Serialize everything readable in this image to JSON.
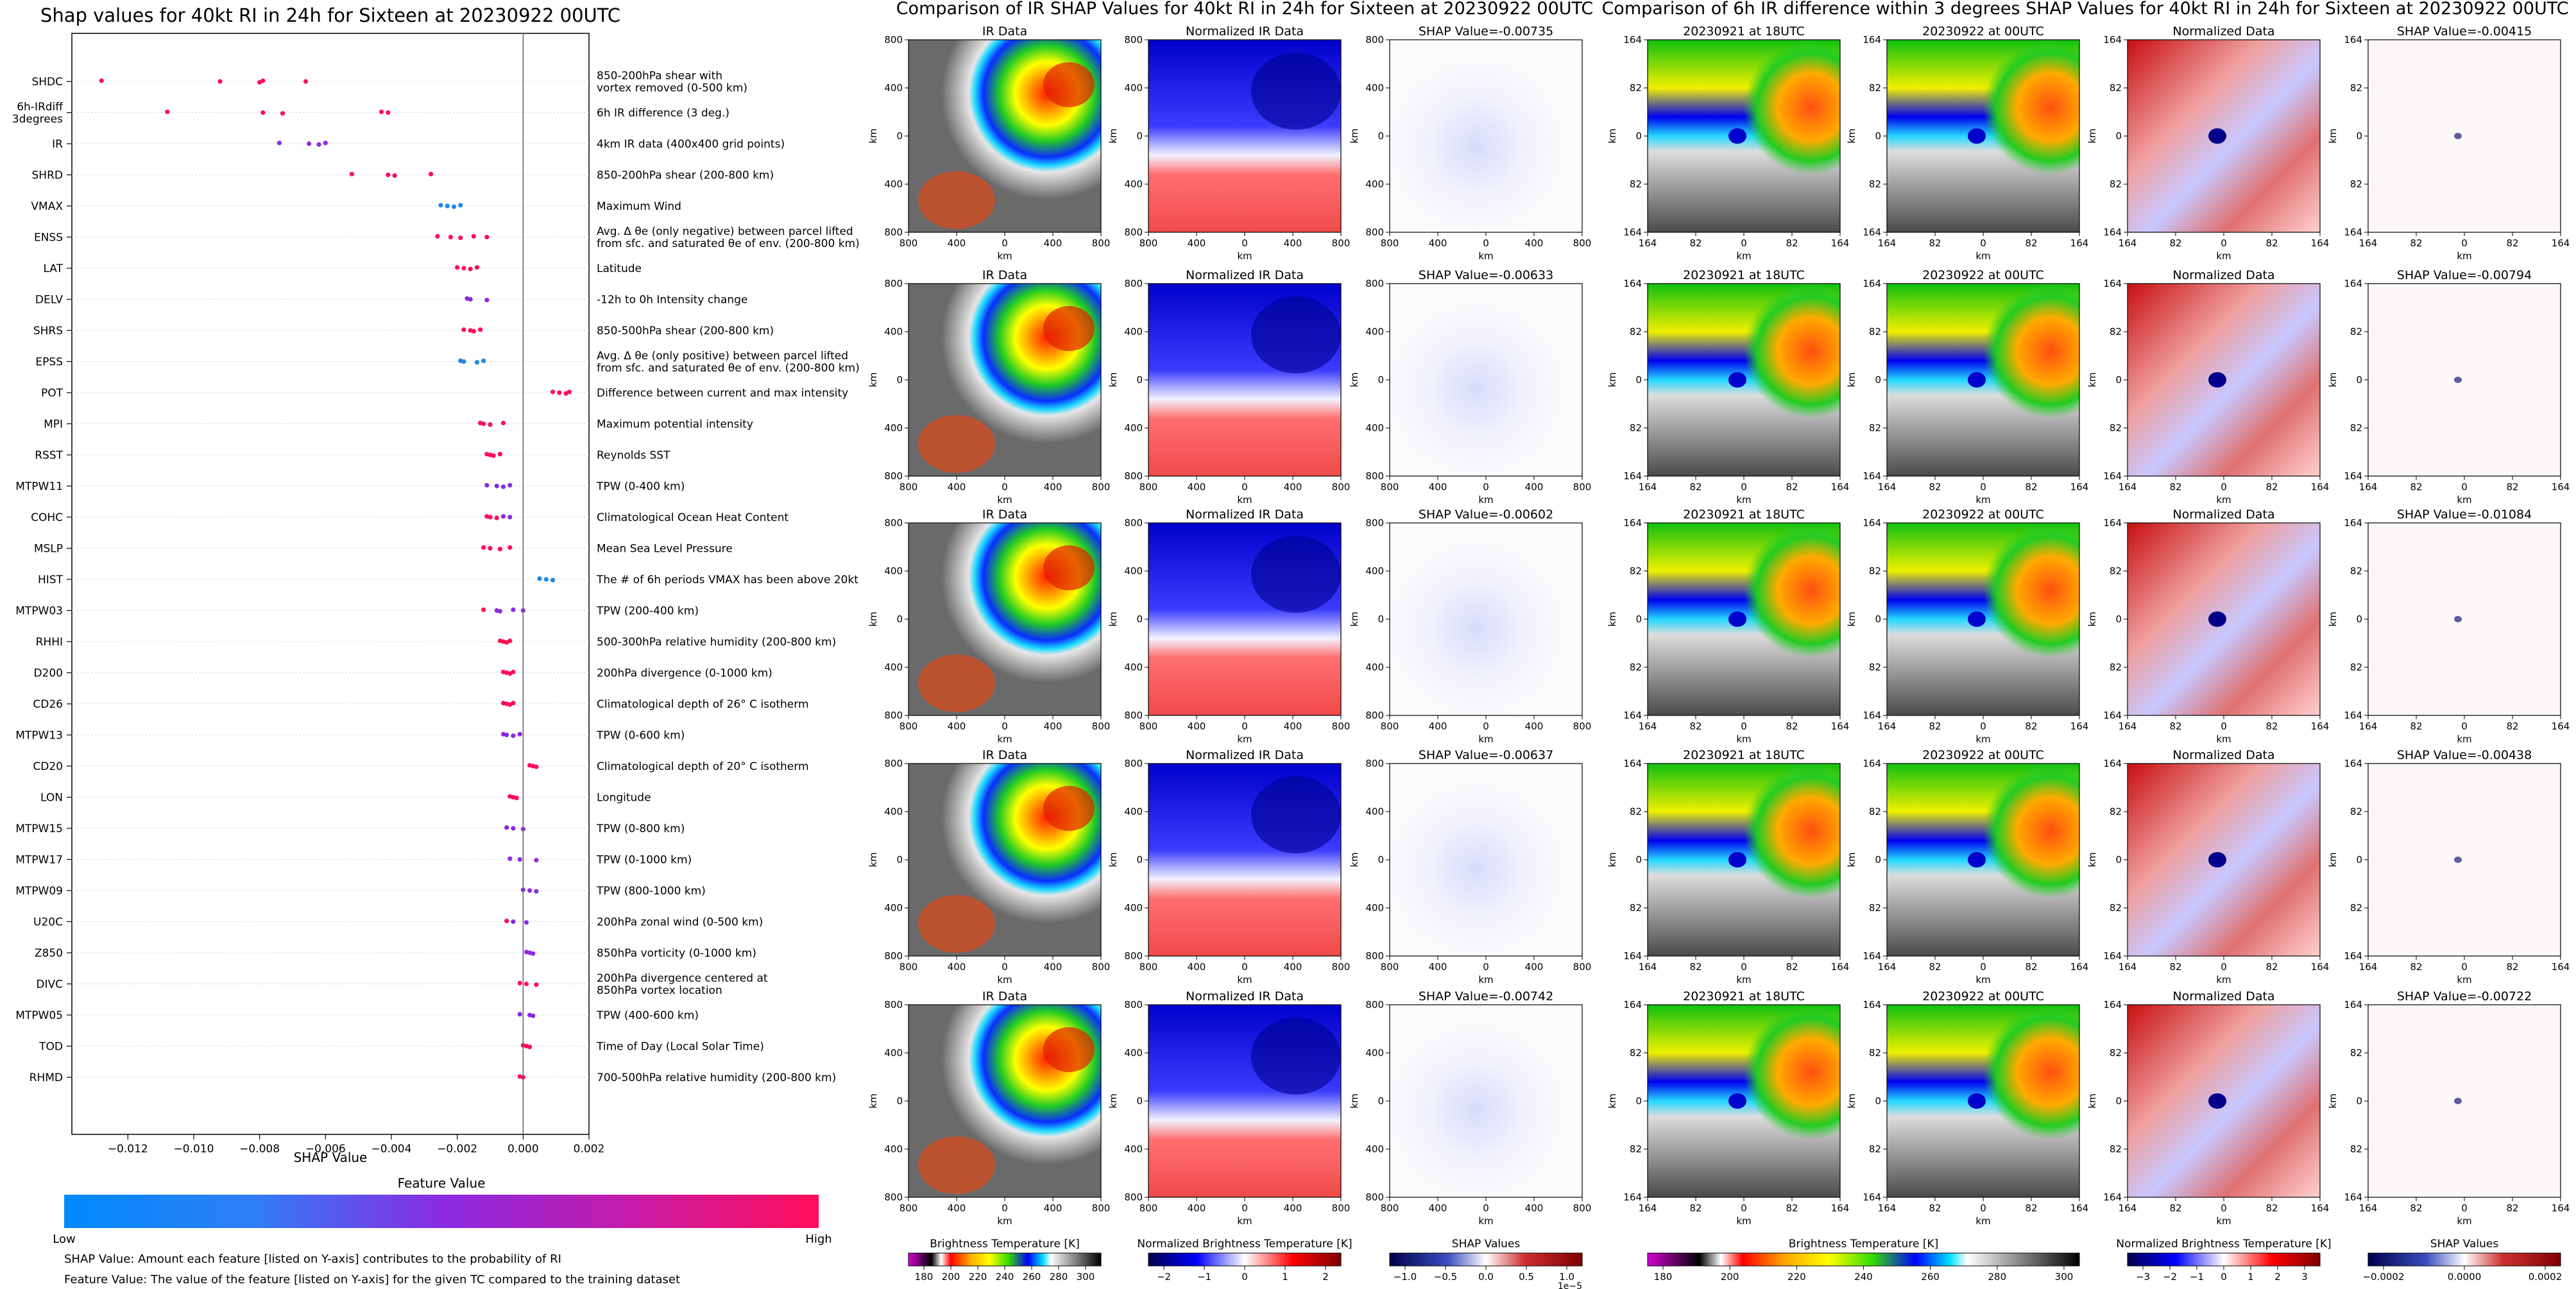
{
  "left": {
    "title": "Shap values for 40kt RI in 24h for Sixteen at 20230922 00UTC",
    "xlabel": "SHAP Value",
    "colorbar_title": "Feature Value",
    "colorbar_low": "Low",
    "colorbar_high": "High",
    "note1": "SHAP Value: Amount each feature [listed on Y-axis] contributes to the probability of RI",
    "note2": "Feature Value: The value of the feature [listed on Y-axis] for the given TC compared to the training dataset"
  },
  "middle": {
    "title": "Comparison of IR SHAP Values for 40kt RI in 24h for Sixteen at 20230922 00UTC",
    "panel_ir": "IR Data",
    "panel_norm": "Normalized IR Data",
    "axis_unit": "km",
    "ticks": [
      "800",
      "400",
      "0",
      "400",
      "800"
    ],
    "cbars": [
      {
        "label": "Brightness Temperature [K]",
        "ticks": [
          "180",
          "200",
          "220",
          "240",
          "260",
          "280",
          "300"
        ]
      },
      {
        "label": "Normalized Brightness Temperature [K]",
        "ticks": [
          "−2",
          "−1",
          "0",
          "1",
          "2"
        ]
      },
      {
        "label": "SHAP Values",
        "ticks": [
          "−1.0",
          "−0.5",
          "0.0",
          "0.5",
          "1.0"
        ],
        "exponent": "1e−5"
      }
    ]
  },
  "right": {
    "title": "Comparison of 6h IR difference within 3 degrees SHAP Values for 40kt RI in 24h for Sixteen at 20230922 00UTC",
    "panel_t1": "20230921 at 18UTC",
    "panel_t2": "20230922 at 00UTC",
    "panel_norm": "Normalized Data",
    "axis_unit": "km",
    "ticks": [
      "164",
      "82",
      "0",
      "82",
      "164"
    ],
    "cbars": [
      {
        "label": "Brightness Temperature [K]",
        "ticks": [
          "180",
          "200",
          "220",
          "240",
          "260",
          "280",
          "300"
        ]
      },
      {
        "label": "Normalized Brightness Temperature [K]",
        "ticks": [
          "−3",
          "−2",
          "−1",
          "0",
          "1",
          "2",
          "3"
        ]
      },
      {
        "label": "SHAP Values",
        "ticks": [
          "−0.0002",
          "0.0000",
          "0.0002"
        ]
      }
    ]
  },
  "colors": {
    "low": "#1e88e5",
    "mid": "#8a2be2",
    "high": "#ff0d57"
  },
  "chart_data": [
    {
      "type": "scatter",
      "subtype": "shap-beeswarm",
      "xlim": [
        -0.0137,
        0.002
      ],
      "xticks": [
        "−0.012",
        "−0.010",
        "−0.008",
        "−0.006",
        "−0.004",
        "−0.002",
        "0.000",
        "0.002"
      ],
      "xtick_values": [
        -0.012,
        -0.01,
        -0.008,
        -0.006,
        -0.004,
        -0.002,
        0.0,
        0.002
      ],
      "features": [
        {
          "name": "SHDC",
          "desc": [
            "850-200hPa shear with",
            "vortex removed (0-500 km)"
          ],
          "points": [
            [
              -0.0128,
              1
            ],
            [
              -0.0092,
              1
            ],
            [
              -0.008,
              1
            ],
            [
              -0.0079,
              1
            ],
            [
              -0.0066,
              1
            ]
          ]
        },
        {
          "name": [
            "6h-IRdiff",
            "3degrees"
          ],
          "desc": [
            "6h IR difference (3 deg.)"
          ],
          "points": [
            [
              -0.0108,
              0.9
            ],
            [
              -0.0079,
              0.9
            ],
            [
              -0.0073,
              0.85
            ],
            [
              -0.0043,
              1
            ],
            [
              -0.0041,
              1
            ]
          ]
        },
        {
          "name": "IR",
          "desc": [
            "4km IR data (400x400 grid points)"
          ],
          "points": [
            [
              -0.0074,
              0.35
            ],
            [
              -0.0065,
              0.45
            ],
            [
              -0.0062,
              0.4
            ],
            [
              -0.006,
              0.3
            ]
          ]
        },
        {
          "name": "SHRD",
          "desc": [
            "850-200hPa shear (200-800 km)"
          ],
          "points": [
            [
              -0.0052,
              1
            ],
            [
              -0.0041,
              0.95
            ],
            [
              -0.0039,
              1
            ],
            [
              -0.0028,
              0.9
            ]
          ]
        },
        {
          "name": "VMAX",
          "desc": [
            "Maximum Wind"
          ],
          "points": [
            [
              -0.0025,
              0.1
            ],
            [
              -0.0023,
              0.1
            ],
            [
              -0.0021,
              0.15
            ],
            [
              -0.0019,
              0.12
            ]
          ]
        },
        {
          "name": "ENSS",
          "desc": [
            "Avg. Δ θe (only negative) between parcel lifted",
            "from sfc. and saturated θe of env. (200-800 km)"
          ],
          "points": [
            [
              -0.0026,
              0.95
            ],
            [
              -0.0022,
              0.9
            ],
            [
              -0.0019,
              0.85
            ],
            [
              -0.0015,
              0.9
            ],
            [
              -0.0011,
              0.95
            ]
          ]
        },
        {
          "name": "LAT",
          "desc": [
            "Latitude"
          ],
          "points": [
            [
              -0.002,
              0.9
            ],
            [
              -0.0018,
              0.95
            ],
            [
              -0.0016,
              1
            ],
            [
              -0.0014,
              0.9
            ]
          ]
        },
        {
          "name": "DELV",
          "desc": [
            "-12h to 0h Intensity change"
          ],
          "points": [
            [
              -0.0017,
              0.5
            ],
            [
              -0.0016,
              0.55
            ],
            [
              -0.0011,
              0.6
            ]
          ]
        },
        {
          "name": "SHRS",
          "desc": [
            "850-500hPa shear (200-800 km)"
          ],
          "points": [
            [
              -0.0018,
              0.9
            ],
            [
              -0.0016,
              0.95
            ],
            [
              -0.0015,
              1
            ],
            [
              -0.0013,
              0.95
            ]
          ]
        },
        {
          "name": "EPSS",
          "desc": [
            "Avg. Δ θe (only positive) between parcel lifted",
            "from sfc. and saturated θe of env. (200-800 km)"
          ],
          "points": [
            [
              -0.0019,
              0.1
            ],
            [
              -0.0018,
              0.12
            ],
            [
              -0.0014,
              0.1
            ],
            [
              -0.0012,
              0.15
            ]
          ]
        },
        {
          "name": "POT",
          "desc": [
            "Difference between current and max intensity"
          ],
          "points": [
            [
              0.0009,
              0.95
            ],
            [
              0.0011,
              1
            ],
            [
              0.0013,
              0.9
            ],
            [
              0.0014,
              0.95
            ]
          ]
        },
        {
          "name": "MPI",
          "desc": [
            "Maximum potential intensity"
          ],
          "points": [
            [
              -0.0013,
              0.8
            ],
            [
              -0.0012,
              0.85
            ],
            [
              -0.001,
              0.9
            ],
            [
              -0.0006,
              0.7
            ]
          ]
        },
        {
          "name": "RSST",
          "desc": [
            "Reynolds SST"
          ],
          "points": [
            [
              -0.0011,
              0.8
            ],
            [
              -0.001,
              0.85
            ],
            [
              -0.0009,
              0.9
            ],
            [
              -0.0007,
              0.75
            ]
          ]
        },
        {
          "name": "MTPW11",
          "desc": [
            "TPW (0-400 km)"
          ],
          "points": [
            [
              -0.0011,
              0.55
            ],
            [
              -0.0008,
              0.5
            ],
            [
              -0.0006,
              0.45
            ],
            [
              -0.0004,
              0.5
            ]
          ]
        },
        {
          "name": "COHC",
          "desc": [
            "Climatological Ocean Heat Content"
          ],
          "points": [
            [
              -0.0011,
              0.7
            ],
            [
              -0.001,
              0.65
            ],
            [
              -0.0008,
              0.7
            ],
            [
              -0.0006,
              0.6
            ],
            [
              -0.0004,
              0.55
            ]
          ]
        },
        {
          "name": "MSLP",
          "desc": [
            "Mean Sea Level Pressure"
          ],
          "points": [
            [
              -0.0012,
              0.85
            ],
            [
              -0.001,
              0.9
            ],
            [
              -0.0007,
              0.8
            ],
            [
              -0.0004,
              0.9
            ]
          ]
        },
        {
          "name": "HIST",
          "desc": [
            "The # of 6h periods VMAX has been above 20kt"
          ],
          "points": [
            [
              0.0005,
              0.1
            ],
            [
              0.0007,
              0.12
            ],
            [
              0.0009,
              0.15
            ]
          ]
        },
        {
          "name": "MTPW03",
          "desc": [
            "TPW (200-400 km)"
          ],
          "points": [
            [
              -0.0012,
              0.7
            ],
            [
              -0.0008,
              0.55
            ],
            [
              -0.0007,
              0.5
            ],
            [
              -0.0003,
              0.5
            ],
            [
              0.0,
              0.45
            ]
          ]
        },
        {
          "name": "RHHI",
          "desc": [
            "500-300hPa relative humidity (200-800 km)"
          ],
          "points": [
            [
              -0.0007,
              0.85
            ],
            [
              -0.0006,
              0.9
            ],
            [
              -0.0005,
              0.95
            ],
            [
              -0.0004,
              0.9
            ]
          ]
        },
        {
          "name": "D200",
          "desc": [
            "200hPa divergence (0-1000 km)"
          ],
          "points": [
            [
              -0.0006,
              0.9
            ],
            [
              -0.0005,
              0.95
            ],
            [
              -0.0004,
              1
            ],
            [
              -0.0003,
              0.9
            ]
          ]
        },
        {
          "name": "CD26",
          "desc": [
            "Climatological depth of 26° C isotherm"
          ],
          "points": [
            [
              -0.0006,
              0.7
            ],
            [
              -0.0005,
              0.75
            ],
            [
              -0.0004,
              0.7
            ],
            [
              -0.0003,
              0.8
            ]
          ]
        },
        {
          "name": "MTPW13",
          "desc": [
            "TPW (0-600 km)"
          ],
          "points": [
            [
              -0.0006,
              0.6
            ],
            [
              -0.0005,
              0.55
            ],
            [
              -0.0003,
              0.5
            ],
            [
              -0.0001,
              0.55
            ]
          ]
        },
        {
          "name": "CD20",
          "desc": [
            "Climatological depth of 20° C isotherm"
          ],
          "points": [
            [
              0.0002,
              0.95
            ],
            [
              0.0003,
              1
            ],
            [
              0.0004,
              0.95
            ]
          ]
        },
        {
          "name": "LON",
          "desc": [
            "Longitude"
          ],
          "points": [
            [
              -0.0004,
              0.9
            ],
            [
              -0.0003,
              0.95
            ],
            [
              -0.0002,
              1
            ]
          ]
        },
        {
          "name": "MTPW15",
          "desc": [
            "TPW (0-800 km)"
          ],
          "points": [
            [
              -0.0005,
              0.6
            ],
            [
              -0.0003,
              0.55
            ],
            [
              0.0,
              0.5
            ]
          ]
        },
        {
          "name": "MTPW17",
          "desc": [
            "TPW (0-1000 km)"
          ],
          "points": [
            [
              -0.0004,
              0.55
            ],
            [
              -0.0001,
              0.5
            ],
            [
              0.0004,
              0.45
            ]
          ]
        },
        {
          "name": "MTPW09",
          "desc": [
            "TPW (800-1000 km)"
          ],
          "points": [
            [
              0.0,
              0.55
            ],
            [
              0.0002,
              0.5
            ],
            [
              0.0004,
              0.45
            ]
          ]
        },
        {
          "name": "U20C",
          "desc": [
            "200hPa zonal wind (0-500 km)"
          ],
          "points": [
            [
              -0.0005,
              0.75
            ],
            [
              -0.0003,
              0.6
            ],
            [
              0.0001,
              0.55
            ]
          ]
        },
        {
          "name": "Z850",
          "desc": [
            "850hPa vorticity (0-1000 km)"
          ],
          "points": [
            [
              0.0001,
              0.5
            ],
            [
              0.0002,
              0.55
            ],
            [
              0.0003,
              0.5
            ]
          ]
        },
        {
          "name": "DIVC",
          "desc": [
            "200hPa divergence centered at",
            "850hPa vortex location"
          ],
          "points": [
            [
              -0.0001,
              0.95
            ],
            [
              0.0001,
              1
            ],
            [
              0.0004,
              0.9
            ]
          ]
        },
        {
          "name": "MTPW05",
          "desc": [
            "TPW (400-600 km)"
          ],
          "points": [
            [
              -0.0001,
              0.6
            ],
            [
              0.0002,
              0.55
            ],
            [
              0.0003,
              0.5
            ]
          ]
        },
        {
          "name": "TOD",
          "desc": [
            "Time of Day (Local Solar Time)"
          ],
          "points": [
            [
              0.0,
              0.95
            ],
            [
              0.0001,
              1
            ],
            [
              0.0002,
              0.9
            ]
          ]
        },
        {
          "name": "RHMD",
          "desc": [
            "700-500hPa relative humidity (200-800 km)"
          ],
          "points": [
            [
              -0.0001,
              0.9
            ],
            [
              0.0,
              0.95
            ]
          ]
        }
      ]
    },
    {
      "type": "heatmap",
      "subtype": "image-grid",
      "rows": [
        {
          "mid_shap_title": "SHAP Value=-0.00735",
          "right_shap_title": "SHAP Value=-0.00415"
        },
        {
          "mid_shap_title": "SHAP Value=-0.00633",
          "right_shap_title": "SHAP Value=-0.00794"
        },
        {
          "mid_shap_title": "SHAP Value=-0.00602",
          "right_shap_title": "SHAP Value=-0.01084"
        },
        {
          "mid_shap_title": "SHAP Value=-0.00637",
          "right_shap_title": "SHAP Value=-0.00438"
        },
        {
          "mid_shap_title": "SHAP Value=-0.00742",
          "right_shap_title": "SHAP Value=-0.00722"
        }
      ]
    }
  ]
}
